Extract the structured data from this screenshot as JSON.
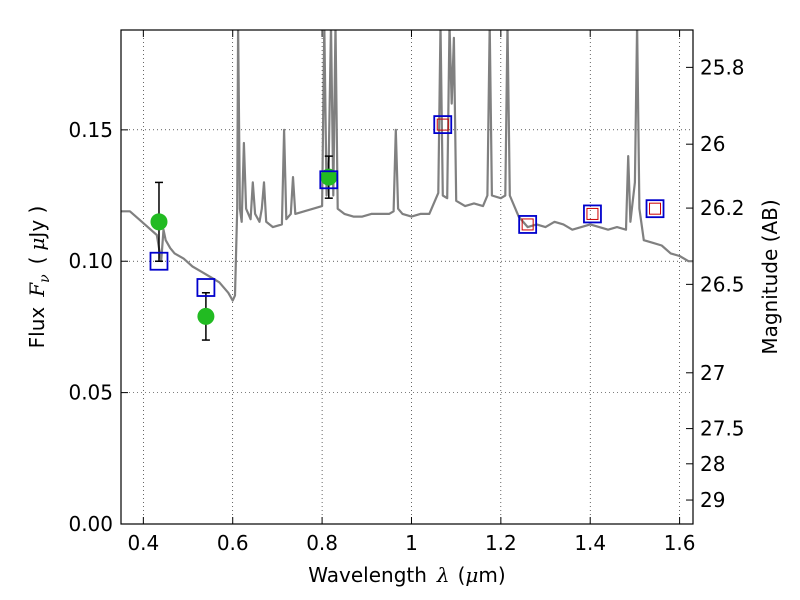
{
  "chart_data": {
    "type": "scatter",
    "title": "",
    "xlabel": "Wavelength",
    "xlabel_symbol": "λ",
    "xlabel_unit_open": "(",
    "xlabel_unit_mu": "μ",
    "xlabel_unit_rest": "m)",
    "ylabel_prefix": "Flux",
    "ylabel_symbol": "F",
    "ylabel_sub": "ν",
    "ylabel_unit_open": "(",
    "ylabel_unit_mu": "μ",
    "ylabel_unit_rest": "Jy )",
    "y2label": "Magnitude (AB)",
    "xlim": [
      0.35,
      1.63
    ],
    "ylim": [
      0.0,
      0.188
    ],
    "grid": true,
    "x_ticks": [
      0.4,
      0.6,
      0.8,
      1.0,
      1.2,
      1.4,
      1.6
    ],
    "x_tick_labels": [
      "0.4",
      "0.6",
      "0.8",
      "1",
      "1.2",
      "1.4",
      "1.6"
    ],
    "y_ticks": [
      0.0,
      0.05,
      0.1,
      0.15
    ],
    "y_tick_labels": [
      "0.00",
      "0.05",
      "0.10",
      "0.15"
    ],
    "y2_ticks": [
      25.8,
      26.0,
      26.2,
      26.5,
      27.0,
      27.5,
      28.0,
      29.0
    ],
    "y2_tick_labels": [
      "25.8",
      "26",
      "26.2",
      "26.5",
      "27",
      "27.5",
      "28",
      "29"
    ],
    "series": [
      {
        "kind": "line",
        "color": "#808080",
        "points": [
          [
            0.35,
            0.119
          ],
          [
            0.37,
            0.119
          ],
          [
            0.39,
            0.116
          ],
          [
            0.41,
            0.113
          ],
          [
            0.43,
            0.11
          ],
          [
            0.44,
            0.1
          ],
          [
            0.445,
            0.112
          ],
          [
            0.45,
            0.108
          ],
          [
            0.46,
            0.105
          ],
          [
            0.47,
            0.103
          ],
          [
            0.49,
            0.101
          ],
          [
            0.51,
            0.098
          ],
          [
            0.53,
            0.096
          ],
          [
            0.55,
            0.094
          ],
          [
            0.57,
            0.092
          ],
          [
            0.59,
            0.088
          ],
          [
            0.6,
            0.085
          ],
          [
            0.605,
            0.087
          ],
          [
            0.61,
            0.12
          ],
          [
            0.612,
            0.19
          ],
          [
            0.616,
            0.12
          ],
          [
            0.62,
            0.115
          ],
          [
            0.625,
            0.145
          ],
          [
            0.63,
            0.12
          ],
          [
            0.64,
            0.116
          ],
          [
            0.645,
            0.13
          ],
          [
            0.65,
            0.118
          ],
          [
            0.66,
            0.115
          ],
          [
            0.665,
            0.12
          ],
          [
            0.67,
            0.13
          ],
          [
            0.675,
            0.115
          ],
          [
            0.69,
            0.113
          ],
          [
            0.71,
            0.114
          ],
          [
            0.715,
            0.15
          ],
          [
            0.72,
            0.116
          ],
          [
            0.73,
            0.118
          ],
          [
            0.735,
            0.132
          ],
          [
            0.74,
            0.118
          ],
          [
            0.76,
            0.119
          ],
          [
            0.78,
            0.12
          ],
          [
            0.8,
            0.121
          ],
          [
            0.805,
            0.19
          ],
          [
            0.81,
            0.125
          ],
          [
            0.815,
            0.14
          ],
          [
            0.82,
            0.19
          ],
          [
            0.825,
            0.125
          ],
          [
            0.83,
            0.19
          ],
          [
            0.835,
            0.12
          ],
          [
            0.85,
            0.118
          ],
          [
            0.87,
            0.117
          ],
          [
            0.89,
            0.117
          ],
          [
            0.91,
            0.118
          ],
          [
            0.93,
            0.118
          ],
          [
            0.95,
            0.118
          ],
          [
            0.96,
            0.119
          ],
          [
            0.965,
            0.15
          ],
          [
            0.97,
            0.12
          ],
          [
            0.98,
            0.118
          ],
          [
            1.0,
            0.117
          ],
          [
            1.02,
            0.118
          ],
          [
            1.04,
            0.118
          ],
          [
            1.05,
            0.122
          ],
          [
            1.06,
            0.126
          ],
          [
            1.065,
            0.19
          ],
          [
            1.07,
            0.125
          ],
          [
            1.08,
            0.124
          ],
          [
            1.085,
            0.19
          ],
          [
            1.09,
            0.16
          ],
          [
            1.095,
            0.185
          ],
          [
            1.1,
            0.123
          ],
          [
            1.12,
            0.121
          ],
          [
            1.14,
            0.122
          ],
          [
            1.16,
            0.121
          ],
          [
            1.17,
            0.125
          ],
          [
            1.175,
            0.19
          ],
          [
            1.18,
            0.125
          ],
          [
            1.2,
            0.124
          ],
          [
            1.21,
            0.125
          ],
          [
            1.215,
            0.19
          ],
          [
            1.22,
            0.125
          ],
          [
            1.24,
            0.117
          ],
          [
            1.26,
            0.113
          ],
          [
            1.28,
            0.114
          ],
          [
            1.3,
            0.113
          ],
          [
            1.32,
            0.115
          ],
          [
            1.34,
            0.114
          ],
          [
            1.36,
            0.112
          ],
          [
            1.38,
            0.113
          ],
          [
            1.4,
            0.114
          ],
          [
            1.42,
            0.113
          ],
          [
            1.44,
            0.112
          ],
          [
            1.46,
            0.113
          ],
          [
            1.48,
            0.112
          ],
          [
            1.485,
            0.14
          ],
          [
            1.49,
            0.115
          ],
          [
            1.5,
            0.13
          ],
          [
            1.505,
            0.19
          ],
          [
            1.51,
            0.12
          ],
          [
            1.52,
            0.108
          ],
          [
            1.54,
            0.107
          ],
          [
            1.56,
            0.106
          ],
          [
            1.58,
            0.103
          ],
          [
            1.6,
            0.102
          ],
          [
            1.62,
            0.1
          ],
          [
            1.63,
            0.1
          ]
        ]
      },
      {
        "kind": "points",
        "marker": "circle",
        "color": "#22bb22",
        "errcolor": "#000000",
        "points": [
          {
            "x": 0.435,
            "y": 0.115,
            "yerr": 0.015
          },
          {
            "x": 0.54,
            "y": 0.079,
            "yerr": 0.009
          },
          {
            "x": 0.815,
            "y": 0.132,
            "yerr": 0.008
          }
        ]
      },
      {
        "kind": "points",
        "marker": "square",
        "color": "#0000cc",
        "points": [
          {
            "x": 0.435,
            "y": 0.1
          },
          {
            "x": 0.54,
            "y": 0.09
          },
          {
            "x": 0.815,
            "y": 0.131
          },
          {
            "x": 1.07,
            "y": 0.152
          },
          {
            "x": 1.26,
            "y": 0.114
          },
          {
            "x": 1.405,
            "y": 0.118
          },
          {
            "x": 1.545,
            "y": 0.12
          }
        ]
      },
      {
        "kind": "points",
        "marker": "small-square",
        "color": "#cc0000",
        "points": [
          {
            "x": 1.07,
            "y": 0.152
          },
          {
            "x": 1.26,
            "y": 0.114
          },
          {
            "x": 1.405,
            "y": 0.118
          },
          {
            "x": 1.545,
            "y": 0.12
          }
        ]
      }
    ]
  }
}
